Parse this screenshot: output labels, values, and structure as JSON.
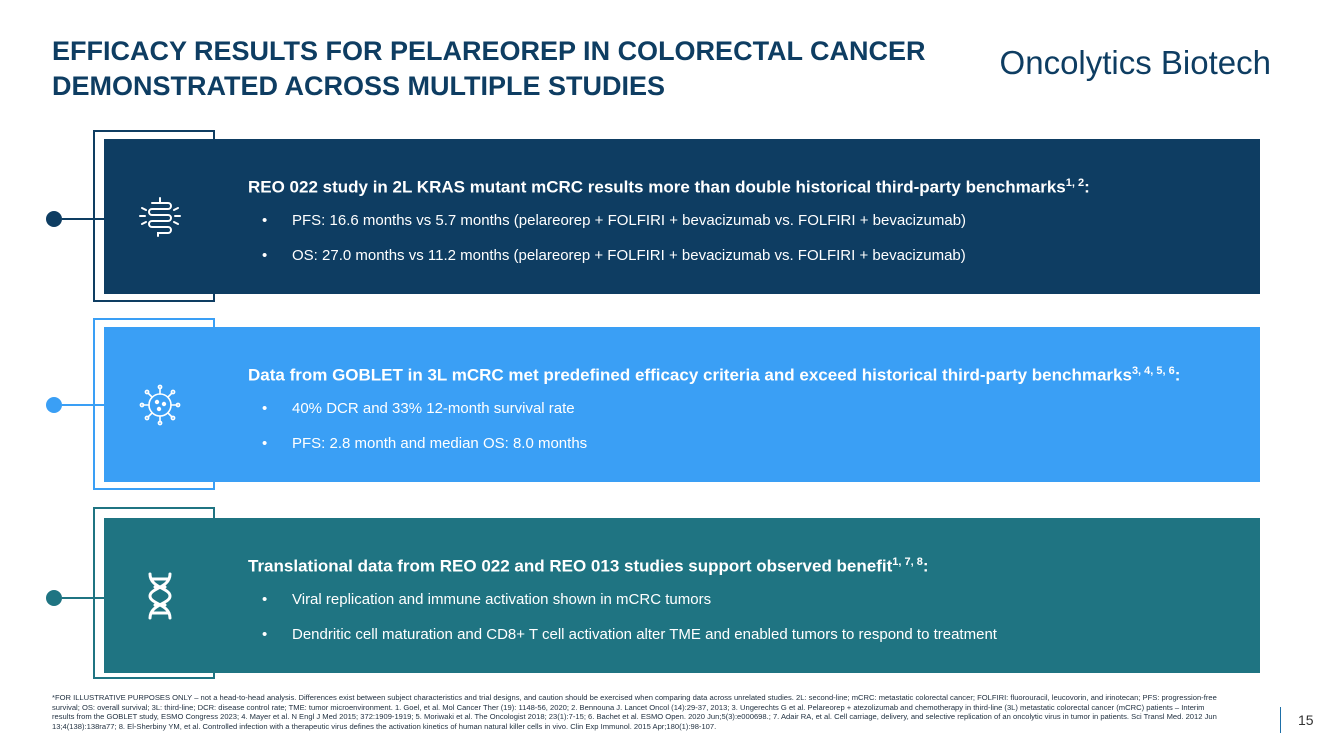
{
  "header": {
    "title_line1": "EFFICACY RESULTS FOR PELAREOREP IN COLORECTAL CANCER",
    "title_line2": "DEMONSTRATED ACROSS MULTIPLE STUDIES",
    "brand": "Oncolytics Biotech"
  },
  "colors": {
    "navy": "#0e3d62",
    "bright_blue": "#3a9ff5",
    "teal": "#1f7482"
  },
  "sections": [
    {
      "icon": "intestine-icon",
      "heading": "REO 022 study in 2L KRAS mutant mCRC results more than double historical third-party benchmarks",
      "refs": "1, 2",
      "suffix": ":",
      "bullets": [
        "PFS: 16.6 months vs 5.7 months (pelareorep + FOLFIRI + bevacizumab vs. FOLFIRI + bevacizumab)",
        "OS: 27.0 months vs 11.2 months (pelareorep + FOLFIRI + bevacizumab vs. FOLFIRI + bevacizumab)"
      ]
    },
    {
      "icon": "virus-icon",
      "heading": "Data from GOBLET in 3L mCRC met predefined efficacy criteria and exceed historical third-party benchmarks",
      "refs": "3, 4, 5, 6",
      "suffix": ":",
      "bullets": [
        "40% DCR and 33% 12-month survival rate",
        "PFS: 2.8 month and median OS: 8.0 months"
      ]
    },
    {
      "icon": "dna-icon",
      "heading": "Translational data from REO 022 and REO 013 studies support observed benefit",
      "refs": "1, 7, 8",
      "suffix": ":",
      "bullets": [
        "Viral replication and immune activation shown in mCRC tumors",
        "Dendritic cell maturation and CD8+ T cell activation alter TME and enabled tumors to respond to treatment"
      ]
    }
  ],
  "footnote": "*FOR ILLUSTRATIVE PURPOSES ONLY – not a head-to-head analysis. Differences exist between subject characteristics and trial designs, and caution should be exercised when comparing data across unrelated studies. 2L: second-line; mCRC: metastatic colorectal cancer; FOLFIRI: fluorouracil, leucovorin, and irinotecan; PFS: progression-free survival; OS: overall survival; 3L: third-line; DCR: disease control rate; TME: tumor microenvironment. 1. Goel, et al. Mol Cancer Ther (19): 1148-56, 2020; 2. Bennouna J. Lancet Oncol (14):29-37, 2013; 3. Ungerechts G et al. Pelareorep + atezolizumab and chemotherapy in third-line (3L) metastatic colorectal cancer (mCRC) patients – Interim results from the GOBLET study, ESMO Congress 2023; 4. Mayer et al. N Engl J Med 2015; 372:1909-1919; 5. Moriwaki et al. The Oncologist 2018; 23(1):7-15; 6. Bachet et al. ESMO Open. 2020 Jun;5(3):e000698.; 7. Adair RA, et al. Cell carriage, delivery, and selective replication of an oncolytic virus in tumor in patients. Sci Transl Med. 2012 Jun 13;4(138):138ra77; 8. El-Sherbiny YM, et al. Controlled infection with a therapeutic virus defines the activation kinetics of human natural killer cells in vivo. Clin Exp Immunol. 2015 Apr;180(1):98-107.",
  "page_number": "15"
}
